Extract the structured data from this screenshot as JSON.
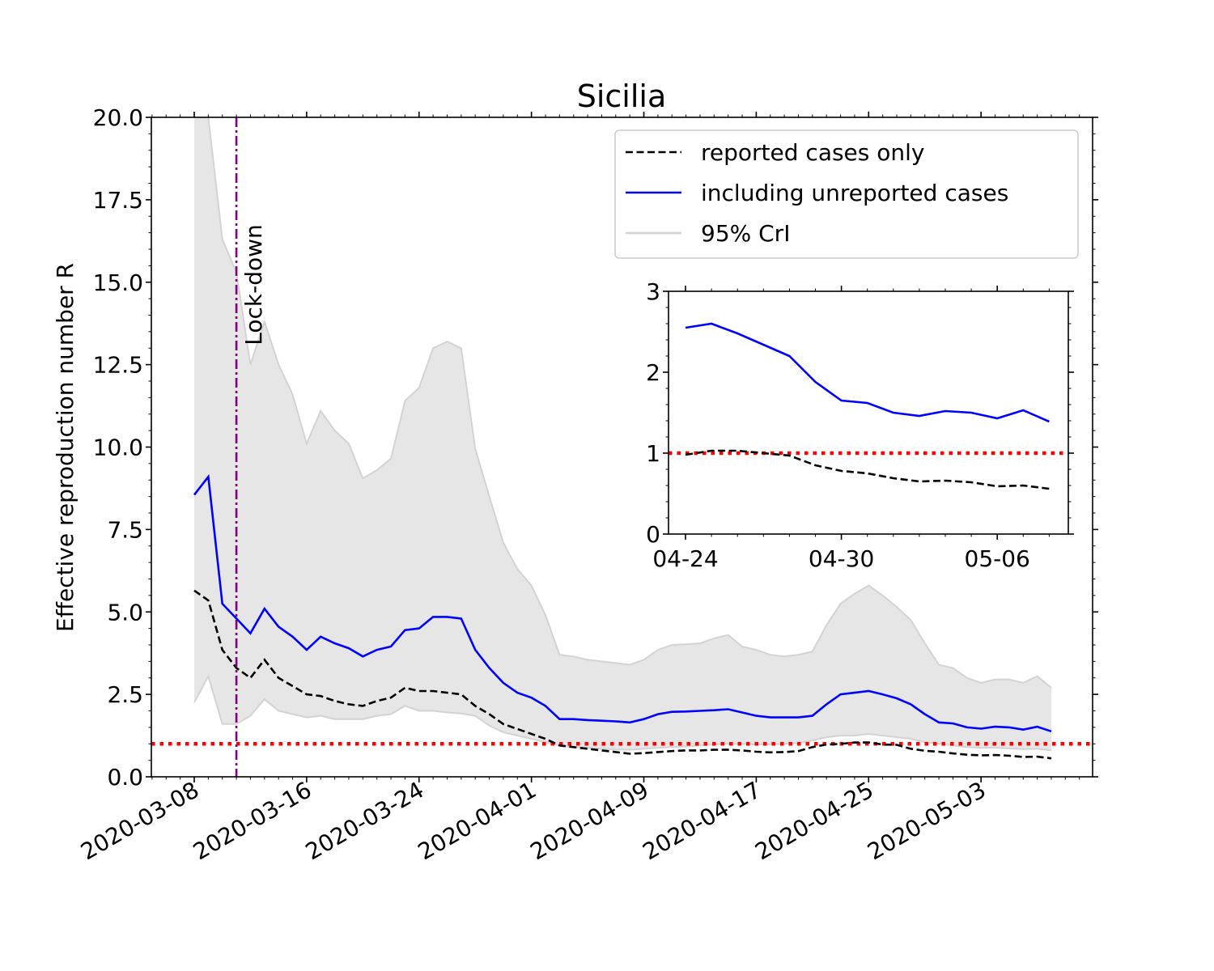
{
  "chart_data": [
    {
      "type": "line",
      "title": "Sicilia",
      "xlabel": "",
      "ylabel": "Effective reproduction number R",
      "ylim": [
        0,
        20
      ],
      "x_start": "2020-03-08",
      "x_tick_labels": [
        "2020-03-08",
        "2020-03-16",
        "2020-03-24",
        "2020-04-01",
        "2020-04-09",
        "2020-04-17",
        "2020-04-25",
        "2020-05-03"
      ],
      "y_tick_labels": [
        "0.0",
        "2.5",
        "5.0",
        "7.5",
        "10.0",
        "12.5",
        "15.0",
        "17.5",
        "20.0"
      ],
      "threshold": 1.0,
      "lockdown_day": 3,
      "lockdown_label": "Lock-down",
      "legend": {
        "position": "top-right",
        "entries": [
          "reported cases only",
          "including unreported cases",
          "95% CrI"
        ]
      },
      "series": [
        {
          "name": "reported cases only",
          "style": "dashed",
          "color": "#000000",
          "values": [
            5.65,
            5.35,
            3.85,
            3.3,
            3.0,
            3.55,
            3.0,
            2.75,
            2.5,
            2.45,
            2.3,
            2.2,
            2.15,
            2.3,
            2.4,
            2.7,
            2.6,
            2.6,
            2.55,
            2.5,
            2.15,
            1.9,
            1.6,
            1.45,
            1.3,
            1.15,
            0.95,
            0.9,
            0.85,
            0.8,
            0.75,
            0.7,
            0.72,
            0.75,
            0.78,
            0.8,
            0.8,
            0.82,
            0.82,
            0.8,
            0.76,
            0.74,
            0.75,
            0.78,
            0.9,
            0.98,
            1.0,
            1.04,
            1.04,
            0.98,
            0.97,
            0.85,
            0.79,
            0.76,
            0.71,
            0.67,
            0.65,
            0.66,
            0.64,
            0.6,
            0.61,
            0.56
          ]
        },
        {
          "name": "including unreported cases",
          "style": "solid",
          "color": "#0000ff",
          "values": [
            8.55,
            9.1,
            5.25,
            4.8,
            4.35,
            5.1,
            4.55,
            4.25,
            3.85,
            4.25,
            4.05,
            3.9,
            3.65,
            3.85,
            3.95,
            4.45,
            4.5,
            4.85,
            4.85,
            4.8,
            3.85,
            3.3,
            2.85,
            2.55,
            2.4,
            2.15,
            1.75,
            1.75,
            1.72,
            1.7,
            1.68,
            1.65,
            1.75,
            1.9,
            1.97,
            1.98,
            2.0,
            2.02,
            2.05,
            1.95,
            1.85,
            1.8,
            1.8,
            1.8,
            1.85,
            2.2,
            2.5,
            2.55,
            2.6,
            2.5,
            2.38,
            2.2,
            1.9,
            1.65,
            1.62,
            1.5,
            1.46,
            1.52,
            1.5,
            1.43,
            1.52,
            1.38
          ]
        },
        {
          "name": "95% CrI upper",
          "color": "#d3d3d3",
          "values": [
            20.0,
            20.0,
            16.3,
            15.3,
            12.5,
            13.8,
            12.5,
            11.6,
            10.1,
            11.1,
            10.5,
            10.1,
            9.05,
            9.3,
            9.65,
            11.4,
            11.8,
            13.0,
            13.2,
            13.0,
            9.95,
            8.5,
            7.1,
            6.3,
            5.8,
            4.9,
            3.7,
            3.65,
            3.55,
            3.5,
            3.45,
            3.4,
            3.55,
            3.85,
            4.0,
            4.02,
            4.05,
            4.2,
            4.3,
            3.95,
            3.85,
            3.7,
            3.65,
            3.7,
            3.8,
            4.6,
            5.25,
            5.55,
            5.8,
            5.5,
            5.15,
            4.75,
            4.05,
            3.4,
            3.3,
            3.0,
            2.85,
            2.95,
            2.95,
            2.85,
            3.05,
            2.7
          ]
        },
        {
          "name": "95% CrI lower",
          "color": "#d3d3d3",
          "values": [
            2.25,
            3.05,
            1.6,
            1.6,
            1.85,
            2.35,
            2.0,
            1.9,
            1.8,
            1.85,
            1.75,
            1.75,
            1.75,
            1.85,
            1.9,
            2.15,
            2.0,
            2.0,
            1.95,
            1.92,
            1.85,
            1.55,
            1.35,
            1.25,
            1.15,
            1.05,
            0.95,
            0.9,
            0.88,
            0.85,
            0.83,
            0.82,
            0.85,
            0.88,
            0.9,
            0.92,
            0.95,
            0.98,
            1.0,
            1.0,
            0.98,
            0.98,
            1.0,
            1.02,
            1.1,
            1.2,
            1.25,
            1.25,
            1.3,
            1.25,
            1.2,
            1.15,
            1.05,
            1.0,
            0.95,
            0.9,
            0.88,
            0.88,
            0.86,
            0.84,
            0.85,
            0.8
          ]
        }
      ]
    },
    {
      "type": "line",
      "title": "",
      "inset": true,
      "xlabel": "",
      "ylabel": "",
      "ylim": [
        0,
        3
      ],
      "x_start": "2020-04-24",
      "x_tick_labels": [
        "04-24",
        "04-30",
        "05-06"
      ],
      "x_tick_days": [
        0,
        6,
        12
      ],
      "y_tick_labels": [
        "0",
        "1",
        "2",
        "3"
      ],
      "threshold": 1.0,
      "series": [
        {
          "name": "reported cases only",
          "style": "dashed",
          "color": "#000000",
          "values": [
            0.98,
            1.03,
            1.03,
            1.0,
            0.97,
            0.85,
            0.78,
            0.75,
            0.69,
            0.65,
            0.66,
            0.64,
            0.59,
            0.6,
            0.56
          ]
        },
        {
          "name": "including unreported cases",
          "style": "solid",
          "color": "#0000ff",
          "values": [
            2.55,
            2.6,
            2.48,
            2.34,
            2.2,
            1.88,
            1.65,
            1.62,
            1.5,
            1.46,
            1.52,
            1.5,
            1.43,
            1.53,
            1.39
          ]
        }
      ]
    }
  ]
}
